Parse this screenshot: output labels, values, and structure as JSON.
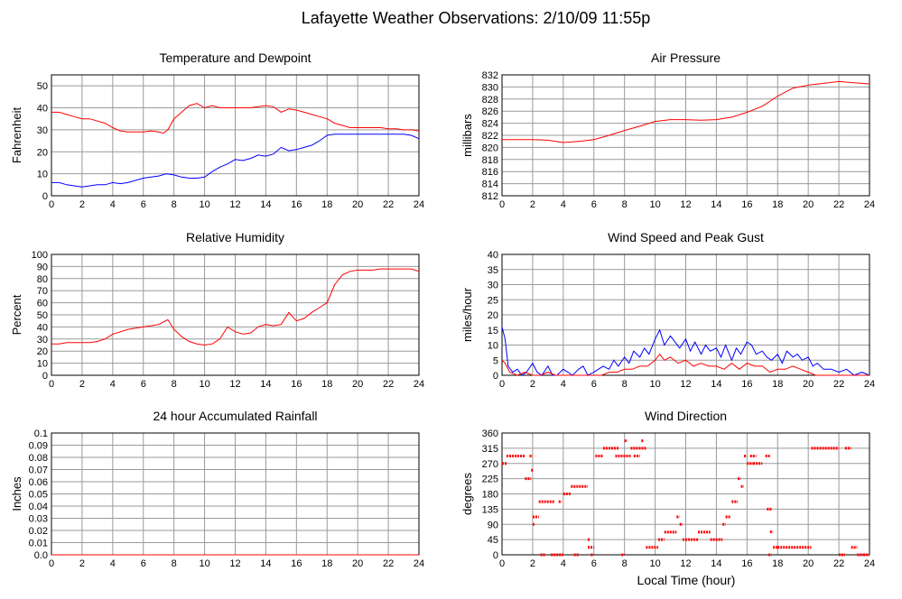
{
  "page": {
    "title": "Lafayette Weather Observations: 2/10/09 11:55p",
    "xlabel": "Local Time (hour)"
  },
  "colors": {
    "red": "#ff0000",
    "blue": "#0000ff",
    "grid": "#9a9a9a"
  },
  "chart_data": [
    {
      "id": "temp",
      "type": "line",
      "title": "Temperature and Dewpoint",
      "ylabel": "Fahrenheit",
      "xlim": [
        0,
        24
      ],
      "ylim": [
        0,
        55
      ],
      "xticks": [
        0,
        2,
        4,
        6,
        8,
        10,
        12,
        14,
        16,
        18,
        20,
        22,
        24
      ],
      "yticks": [
        0,
        10,
        20,
        30,
        40,
        50
      ],
      "series": [
        {
          "color": "red",
          "x": [
            0,
            0.5,
            1,
            1.5,
            2,
            2.5,
            3,
            3.5,
            4,
            4.5,
            5,
            5.5,
            6,
            6.5,
            7,
            7.3,
            7.6,
            8,
            8.5,
            9,
            9.5,
            10,
            10.5,
            11,
            11.5,
            12,
            12.5,
            13,
            13.5,
            14,
            14.5,
            15,
            15.5,
            16,
            16.5,
            17,
            17.5,
            18,
            18.5,
            19,
            19.5,
            20,
            20.5,
            21,
            21.5,
            22,
            22.5,
            23,
            23.5,
            24
          ],
          "y": [
            38,
            38,
            37,
            36,
            35,
            35,
            34,
            33,
            31,
            29.5,
            29,
            29,
            29,
            29.5,
            29,
            28.5,
            30,
            35,
            38,
            41,
            42,
            40,
            41,
            40,
            40,
            40,
            40,
            40,
            40.5,
            41,
            40.5,
            38,
            39.5,
            39,
            38,
            37,
            36,
            35,
            33,
            32,
            31,
            31,
            31,
            31,
            31,
            30.5,
            30.5,
            30,
            30,
            29.5
          ]
        },
        {
          "color": "blue",
          "x": [
            0,
            0.5,
            1,
            1.5,
            2,
            2.5,
            3,
            3.5,
            4,
            4.5,
            5,
            5.5,
            6,
            6.5,
            7,
            7.5,
            8,
            8.5,
            9,
            9.5,
            10,
            10.5,
            11,
            11.5,
            12,
            12.5,
            13,
            13.5,
            14,
            14.5,
            15,
            15.5,
            16,
            16.5,
            17,
            17.5,
            18,
            18.5,
            19,
            19.5,
            20,
            20.5,
            21,
            21.5,
            22,
            22.5,
            23,
            23.5,
            24
          ],
          "y": [
            6,
            6,
            5,
            4.5,
            4,
            4.5,
            5,
            5,
            6,
            5.5,
            6,
            7,
            8,
            8.5,
            9,
            10,
            9.5,
            8.5,
            8,
            8,
            8.5,
            11,
            13,
            14.5,
            16.5,
            16,
            17,
            18.5,
            18,
            19,
            22,
            20.5,
            21,
            22,
            23,
            25,
            27.5,
            28,
            28,
            28,
            28,
            28,
            28,
            28,
            28,
            28,
            28,
            27.5,
            26
          ]
        }
      ]
    },
    {
      "id": "pressure",
      "type": "line",
      "title": "Air Pressure",
      "ylabel": "millibars",
      "xlim": [
        0,
        24
      ],
      "ylim": [
        812,
        832
      ],
      "xticks": [
        0,
        2,
        4,
        6,
        8,
        10,
        12,
        14,
        16,
        18,
        20,
        22,
        24
      ],
      "yticks": [
        812,
        814,
        816,
        818,
        820,
        822,
        824,
        826,
        828,
        830,
        832
      ],
      "series": [
        {
          "color": "red",
          "x": [
            0,
            1,
            2,
            3,
            4,
            5,
            6,
            7,
            8,
            9,
            10,
            11,
            12,
            13,
            14,
            15,
            16,
            17,
            18,
            19,
            20,
            21,
            22,
            23,
            24
          ],
          "y": [
            821.3,
            821.3,
            821.3,
            821.2,
            820.8,
            821,
            821.3,
            822,
            822.8,
            823.5,
            824.3,
            824.6,
            824.6,
            824.5,
            824.6,
            825,
            825.8,
            826.8,
            828.5,
            829.8,
            830.3,
            830.6,
            830.9,
            830.7,
            830.5
          ]
        }
      ]
    },
    {
      "id": "humidity",
      "type": "line",
      "title": "Relative Humidity",
      "ylabel": "Percent",
      "xlim": [
        0,
        24
      ],
      "ylim": [
        0,
        100
      ],
      "xticks": [
        0,
        2,
        4,
        6,
        8,
        10,
        12,
        14,
        16,
        18,
        20,
        22,
        24
      ],
      "yticks": [
        0,
        10,
        20,
        30,
        40,
        50,
        60,
        70,
        80,
        90,
        100
      ],
      "series": [
        {
          "color": "red",
          "x": [
            0,
            0.5,
            1,
            1.5,
            2,
            2.5,
            3,
            3.5,
            4,
            4.5,
            5,
            5.5,
            6,
            6.5,
            7,
            7.3,
            7.6,
            8,
            8.5,
            9,
            9.5,
            10,
            10.5,
            11,
            11.5,
            12,
            12.5,
            13,
            13.5,
            14,
            14.5,
            15,
            15.5,
            16,
            16.5,
            17,
            17.5,
            18,
            18.5,
            19,
            19.5,
            20,
            20.5,
            21,
            21.5,
            22,
            22.5,
            23,
            23.5,
            24
          ],
          "y": [
            26,
            26,
            27,
            27,
            27,
            27,
            28,
            30,
            34,
            36,
            38,
            39,
            40,
            41,
            42,
            44,
            46,
            38,
            32,
            28,
            26,
            25,
            26,
            30,
            40,
            36,
            34,
            35,
            40,
            42,
            41,
            42,
            52,
            45,
            47,
            52,
            56,
            60,
            75,
            83,
            86,
            87,
            87,
            87,
            88,
            88,
            88,
            88,
            88,
            86
          ]
        }
      ]
    },
    {
      "id": "wind",
      "type": "line",
      "title": "Wind Speed and Peak Gust",
      "ylabel": "miles/hour",
      "xlim": [
        0,
        24
      ],
      "ylim": [
        0,
        40
      ],
      "xticks": [
        0,
        2,
        4,
        6,
        8,
        10,
        12,
        14,
        16,
        18,
        20,
        22,
        24
      ],
      "yticks": [
        0,
        5,
        10,
        15,
        20,
        25,
        30,
        35,
        40
      ],
      "series": [
        {
          "color": "blue",
          "name": "gust",
          "x": [
            0,
            0.2,
            0.4,
            0.7,
            1,
            1.3,
            1.6,
            2,
            2.3,
            2.6,
            3,
            3.3,
            3.6,
            4,
            4.3,
            4.6,
            5,
            5.3,
            5.6,
            6,
            6.3,
            6.6,
            7,
            7.3,
            7.6,
            8,
            8.3,
            8.6,
            9,
            9.3,
            9.6,
            10,
            10.3,
            10.6,
            11,
            11.3,
            11.6,
            12,
            12.3,
            12.6,
            13,
            13.3,
            13.6,
            14,
            14.3,
            14.6,
            15,
            15.3,
            15.6,
            16,
            16.3,
            16.6,
            17,
            17.3,
            17.6,
            18,
            18.3,
            18.6,
            19,
            19.3,
            19.6,
            20,
            20.3,
            20.6,
            21,
            21.5,
            22,
            22.5,
            23,
            23.5,
            24
          ],
          "y": [
            16,
            12,
            3,
            1,
            2,
            0,
            1,
            4,
            1,
            0,
            3,
            0,
            0,
            2,
            1,
            0,
            2,
            3,
            0,
            1,
            2,
            3,
            2,
            5,
            3,
            6,
            4,
            8,
            6,
            9,
            7,
            12,
            15,
            10,
            13,
            11,
            9,
            12,
            8,
            11,
            7,
            10,
            8,
            9,
            6,
            10,
            5,
            9,
            7,
            11,
            10,
            7,
            8,
            6,
            5,
            7,
            4,
            8,
            6,
            7,
            5,
            6,
            3,
            4,
            2,
            2,
            1,
            2,
            0,
            1,
            0
          ]
        },
        {
          "color": "red",
          "name": "speed",
          "x": [
            0,
            0.2,
            0.5,
            1,
            1.5,
            2,
            2.5,
            3,
            3.5,
            4,
            4.5,
            5,
            5.5,
            6,
            6.5,
            7,
            7.5,
            8,
            8.5,
            9,
            9.5,
            10,
            10.3,
            10.6,
            11,
            11.5,
            12,
            12.5,
            13,
            13.5,
            14,
            14.5,
            15,
            15.5,
            16,
            16.5,
            17,
            17.5,
            18,
            18.5,
            19,
            19.5,
            20,
            20.5,
            21,
            22,
            23,
            24
          ],
          "y": [
            5,
            4,
            1,
            0,
            1,
            0,
            0,
            1,
            0,
            0,
            0,
            0,
            0,
            0,
            0,
            1,
            1,
            2,
            2,
            3,
            3,
            5,
            7,
            5,
            6,
            4,
            5,
            3,
            4,
            3,
            3,
            2,
            4,
            2,
            4,
            3,
            3,
            1,
            2,
            2,
            3,
            2,
            1,
            0,
            0,
            0,
            0,
            0
          ]
        }
      ]
    },
    {
      "id": "rain",
      "type": "line",
      "title": "24 hour Accumulated Rainfall",
      "ylabel": "Inches",
      "xlim": [
        0,
        24
      ],
      "ylim": [
        0,
        0.1
      ],
      "xticks": [
        0,
        2,
        4,
        6,
        8,
        10,
        12,
        14,
        16,
        18,
        20,
        22,
        24
      ],
      "yticks": [
        0,
        0.01,
        0.02,
        0.03,
        0.04,
        0.05,
        0.06,
        0.07,
        0.08,
        0.09,
        0.1
      ],
      "ytick_labels": [
        "0.0",
        "0.01",
        "0.02",
        "0.03",
        "0.04",
        "0.05",
        "0.06",
        "0.07",
        "0.08",
        "0.09",
        "0.1"
      ],
      "series": [
        {
          "color": "red",
          "x": [
            0,
            24
          ],
          "y": [
            0,
            0
          ]
        }
      ]
    },
    {
      "id": "direction",
      "type": "scatter",
      "title": "Wind Direction",
      "ylabel": "degrees",
      "xlim": [
        0,
        24
      ],
      "ylim": [
        0,
        360
      ],
      "xticks": [
        0,
        2,
        4,
        6,
        8,
        10,
        12,
        14,
        16,
        18,
        20,
        22,
        24
      ],
      "yticks": [
        0,
        45,
        90,
        135,
        180,
        225,
        270,
        315,
        360
      ],
      "series": [
        {
          "color": "red",
          "segments": [
            [
              0,
              0.3,
              270
            ],
            [
              0.3,
              1.5,
              292
            ],
            [
              1.5,
              1.9,
              225
            ],
            [
              1.8,
              2.0,
              292
            ],
            [
              1.9,
              2.0,
              250
            ],
            [
              2.0,
              2.05,
              90
            ],
            [
              2.0,
              2.4,
              112
            ],
            [
              2.4,
              3.4,
              157
            ],
            [
              2.5,
              2.8,
              0
            ],
            [
              3.2,
              4.0,
              0
            ],
            [
              3.7,
              3.9,
              157
            ],
            [
              4.0,
              4.5,
              180
            ],
            [
              4.5,
              5.6,
              202
            ],
            [
              4.7,
              5.0,
              0
            ],
            [
              5.6,
              5.7,
              45
            ],
            [
              5.6,
              6.0,
              22
            ],
            [
              5.8,
              6.0,
              0
            ],
            [
              6.1,
              6.6,
              292
            ],
            [
              6.6,
              7.6,
              315
            ],
            [
              7.4,
              8.4,
              292
            ],
            [
              7.8,
              8.0,
              0
            ],
            [
              8.0,
              8.2,
              337
            ],
            [
              8.4,
              9.4,
              315
            ],
            [
              8.6,
              9.0,
              292
            ],
            [
              9.1,
              9.2,
              337
            ],
            [
              9.4,
              10.2,
              22
            ],
            [
              10.2,
              10.6,
              45
            ],
            [
              10.6,
              11.4,
              67
            ],
            [
              11.4,
              11.6,
              112
            ],
            [
              11.6,
              11.8,
              90
            ],
            [
              11.8,
              12.8,
              45
            ],
            [
              12.8,
              13.6,
              67
            ],
            [
              13.6,
              14.4,
              45
            ],
            [
              14.4,
              14.6,
              90
            ],
            [
              14.6,
              14.9,
              112
            ],
            [
              15.0,
              15.4,
              157
            ],
            [
              15.4,
              15.6,
              225
            ],
            [
              15.6,
              15.8,
              202
            ],
            [
              15.8,
              16.0,
              292
            ],
            [
              16.0,
              16.4,
              270
            ],
            [
              16.4,
              17.0,
              270
            ],
            [
              16.2,
              16.6,
              292
            ],
            [
              17.2,
              17.5,
              292
            ],
            [
              17.3,
              17.6,
              135
            ],
            [
              17.5,
              17.7,
              68
            ],
            [
              17.4,
              17.6,
              0
            ],
            [
              17.7,
              18.0,
              22
            ],
            [
              18.0,
              20.2,
              22
            ],
            [
              20.2,
              22.0,
              315
            ],
            [
              22.0,
              22.4,
              0
            ],
            [
              22.4,
              22.8,
              315
            ],
            [
              22.8,
              23.2,
              22
            ],
            [
              23.2,
              23.6,
              0
            ],
            [
              23.6,
              24.0,
              0
            ]
          ]
        }
      ]
    }
  ]
}
